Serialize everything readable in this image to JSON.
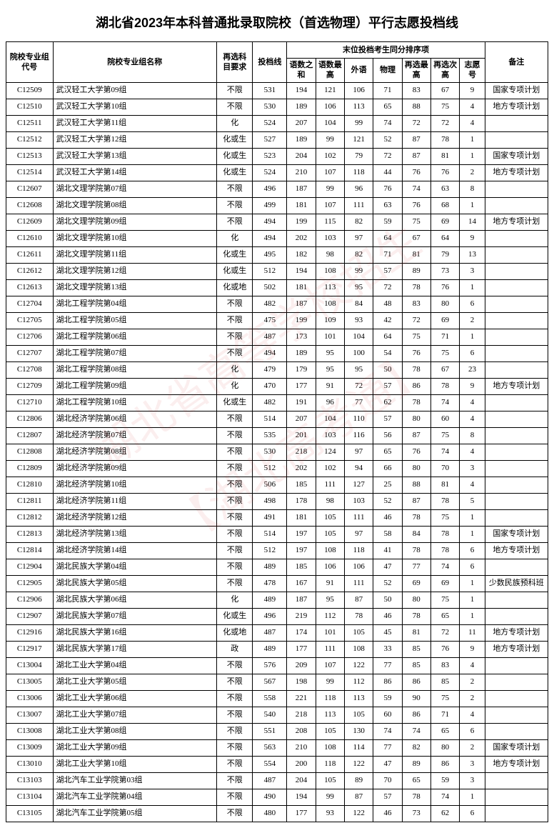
{
  "title": "湖北省2023年本科普通批录取院校（首选物理）平行志愿投档线",
  "headers": {
    "code": "院校专业组代号",
    "name": "院校专业组名称",
    "subject": "再选科目要求",
    "score": "投档线",
    "tiebreak_group": "末位投档考生同分排序项",
    "col1": "语数之和",
    "col2": "语数最高",
    "col3": "外语",
    "col4": "物理",
    "col5": "再选最高",
    "col6": "再选次高",
    "col7": "志愿号",
    "note": "备注"
  },
  "col_widths": {
    "code": 52,
    "name": 182,
    "subject": 40,
    "score": 38,
    "c1": 32,
    "c2": 32,
    "c3": 32,
    "c4": 32,
    "c5": 32,
    "c6": 32,
    "c7": 28,
    "note": 70
  },
  "rows": [
    [
      "C12509",
      "武汉轻工大学第09组",
      "不限",
      "531",
      "194",
      "121",
      "106",
      "71",
      "83",
      "67",
      "9",
      "国家专项计划"
    ],
    [
      "C12510",
      "武汉轻工大学第10组",
      "不限",
      "530",
      "189",
      "106",
      "113",
      "65",
      "88",
      "75",
      "4",
      "地方专项计划"
    ],
    [
      "C12511",
      "武汉轻工大学第11组",
      "化",
      "524",
      "207",
      "104",
      "99",
      "74",
      "72",
      "72",
      "4",
      ""
    ],
    [
      "C12512",
      "武汉轻工大学第12组",
      "化或生",
      "527",
      "189",
      "99",
      "121",
      "52",
      "87",
      "78",
      "1",
      ""
    ],
    [
      "C12513",
      "武汉轻工大学第13组",
      "化或生",
      "523",
      "204",
      "102",
      "79",
      "72",
      "87",
      "81",
      "1",
      "国家专项计划"
    ],
    [
      "C12514",
      "武汉轻工大学第14组",
      "化或生",
      "524",
      "210",
      "107",
      "118",
      "44",
      "76",
      "76",
      "2",
      "地方专项计划"
    ],
    [
      "C12607",
      "湖北文理学院第07组",
      "不限",
      "496",
      "187",
      "99",
      "96",
      "76",
      "74",
      "63",
      "8",
      ""
    ],
    [
      "C12608",
      "湖北文理学院第08组",
      "不限",
      "499",
      "181",
      "107",
      "111",
      "63",
      "76",
      "68",
      "1",
      ""
    ],
    [
      "C12609",
      "湖北文理学院第09组",
      "不限",
      "494",
      "199",
      "115",
      "82",
      "59",
      "75",
      "69",
      "14",
      "地方专项计划"
    ],
    [
      "C12610",
      "湖北文理学院第10组",
      "化",
      "494",
      "202",
      "103",
      "97",
      "64",
      "67",
      "64",
      "9",
      ""
    ],
    [
      "C12611",
      "湖北文理学院第11组",
      "化或生",
      "495",
      "182",
      "98",
      "82",
      "71",
      "81",
      "79",
      "13",
      ""
    ],
    [
      "C12612",
      "湖北文理学院第12组",
      "化或生",
      "512",
      "194",
      "108",
      "99",
      "57",
      "89",
      "73",
      "3",
      ""
    ],
    [
      "C12613",
      "湖北文理学院第13组",
      "化或地",
      "502",
      "181",
      "113",
      "95",
      "72",
      "78",
      "76",
      "1",
      ""
    ],
    [
      "C12704",
      "湖北工程学院第04组",
      "不限",
      "482",
      "187",
      "108",
      "84",
      "48",
      "83",
      "80",
      "6",
      ""
    ],
    [
      "C12705",
      "湖北工程学院第05组",
      "不限",
      "475",
      "199",
      "109",
      "93",
      "42",
      "72",
      "69",
      "2",
      ""
    ],
    [
      "C12706",
      "湖北工程学院第06组",
      "不限",
      "487",
      "173",
      "101",
      "104",
      "64",
      "75",
      "71",
      "1",
      ""
    ],
    [
      "C12707",
      "湖北工程学院第07组",
      "不限",
      "494",
      "189",
      "95",
      "100",
      "54",
      "76",
      "75",
      "6",
      ""
    ],
    [
      "C12708",
      "湖北工程学院第08组",
      "化",
      "479",
      "179",
      "95",
      "95",
      "50",
      "78",
      "67",
      "23",
      ""
    ],
    [
      "C12709",
      "湖北工程学院第09组",
      "化",
      "470",
      "177",
      "91",
      "72",
      "57",
      "86",
      "78",
      "9",
      "地方专项计划"
    ],
    [
      "C12710",
      "湖北工程学院第10组",
      "化或生",
      "482",
      "191",
      "96",
      "77",
      "62",
      "78",
      "74",
      "4",
      ""
    ],
    [
      "C12806",
      "湖北经济学院第06组",
      "不限",
      "514",
      "207",
      "104",
      "110",
      "57",
      "80",
      "60",
      "4",
      ""
    ],
    [
      "C12807",
      "湖北经济学院第07组",
      "不限",
      "535",
      "201",
      "103",
      "116",
      "56",
      "87",
      "75",
      "8",
      ""
    ],
    [
      "C12808",
      "湖北经济学院第08组",
      "不限",
      "530",
      "218",
      "124",
      "97",
      "65",
      "76",
      "74",
      "4",
      ""
    ],
    [
      "C12809",
      "湖北经济学院第09组",
      "不限",
      "512",
      "202",
      "102",
      "94",
      "66",
      "80",
      "70",
      "3",
      ""
    ],
    [
      "C12810",
      "湖北经济学院第10组",
      "不限",
      "506",
      "185",
      "111",
      "127",
      "25",
      "88",
      "81",
      "4",
      ""
    ],
    [
      "C12811",
      "湖北经济学院第11组",
      "不限",
      "498",
      "178",
      "98",
      "103",
      "52",
      "87",
      "78",
      "5",
      ""
    ],
    [
      "C12812",
      "湖北经济学院第12组",
      "不限",
      "491",
      "181",
      "105",
      "111",
      "46",
      "78",
      "75",
      "1",
      ""
    ],
    [
      "C12813",
      "湖北经济学院第13组",
      "不限",
      "514",
      "197",
      "105",
      "97",
      "58",
      "84",
      "78",
      "1",
      "国家专项计划"
    ],
    [
      "C12814",
      "湖北经济学院第14组",
      "不限",
      "512",
      "197",
      "108",
      "118",
      "41",
      "78",
      "78",
      "6",
      "地方专项计划"
    ],
    [
      "C12904",
      "湖北民族大学第04组",
      "不限",
      "489",
      "185",
      "106",
      "106",
      "47",
      "77",
      "74",
      "6",
      ""
    ],
    [
      "C12905",
      "湖北民族大学第05组",
      "不限",
      "478",
      "167",
      "91",
      "111",
      "52",
      "69",
      "69",
      "1",
      "少数民族预科班"
    ],
    [
      "C12906",
      "湖北民族大学第06组",
      "化",
      "489",
      "187",
      "95",
      "87",
      "50",
      "80",
      "75",
      "1",
      ""
    ],
    [
      "C12907",
      "湖北民族大学第07组",
      "化或生",
      "496",
      "219",
      "112",
      "78",
      "46",
      "78",
      "65",
      "1",
      ""
    ],
    [
      "C12916",
      "湖北民族大学第16组",
      "化或地",
      "487",
      "174",
      "101",
      "105",
      "45",
      "81",
      "72",
      "11",
      "地方专项计划"
    ],
    [
      "C12917",
      "湖北民族大学第17组",
      "政",
      "489",
      "177",
      "111",
      "108",
      "33",
      "85",
      "76",
      "9",
      "地方专项计划"
    ],
    [
      "C13004",
      "湖北工业大学第04组",
      "不限",
      "576",
      "209",
      "107",
      "122",
      "77",
      "85",
      "83",
      "4",
      ""
    ],
    [
      "C13005",
      "湖北工业大学第05组",
      "不限",
      "567",
      "198",
      "99",
      "112",
      "86",
      "86",
      "85",
      "2",
      ""
    ],
    [
      "C13006",
      "湖北工业大学第06组",
      "不限",
      "558",
      "221",
      "118",
      "113",
      "59",
      "90",
      "75",
      "2",
      ""
    ],
    [
      "C13007",
      "湖北工业大学第07组",
      "不限",
      "540",
      "218",
      "113",
      "105",
      "60",
      "86",
      "71",
      "4",
      ""
    ],
    [
      "C13008",
      "湖北工业大学第08组",
      "不限",
      "551",
      "208",
      "105",
      "130",
      "74",
      "74",
      "65",
      "6",
      ""
    ],
    [
      "C13009",
      "湖北工业大学第09组",
      "不限",
      "563",
      "210",
      "108",
      "114",
      "77",
      "82",
      "80",
      "2",
      "国家专项计划"
    ],
    [
      "C13010",
      "湖北工业大学第10组",
      "不限",
      "554",
      "200",
      "118",
      "122",
      "47",
      "89",
      "86",
      "3",
      "地方专项计划"
    ],
    [
      "C13103",
      "湖北汽车工业学院第03组",
      "不限",
      "487",
      "204",
      "105",
      "89",
      "70",
      "65",
      "59",
      "3",
      ""
    ],
    [
      "C13104",
      "湖北汽车工业学院第04组",
      "不限",
      "490",
      "194",
      "99",
      "87",
      "57",
      "78",
      "74",
      "1",
      ""
    ],
    [
      "C13105",
      "湖北汽车工业学院第05组",
      "不限",
      "480",
      "177",
      "93",
      "122",
      "46",
      "73",
      "62",
      "6",
      ""
    ]
  ],
  "watermarks": [
    "湖北省高等学校招生",
    "【湖北高考通】"
  ]
}
